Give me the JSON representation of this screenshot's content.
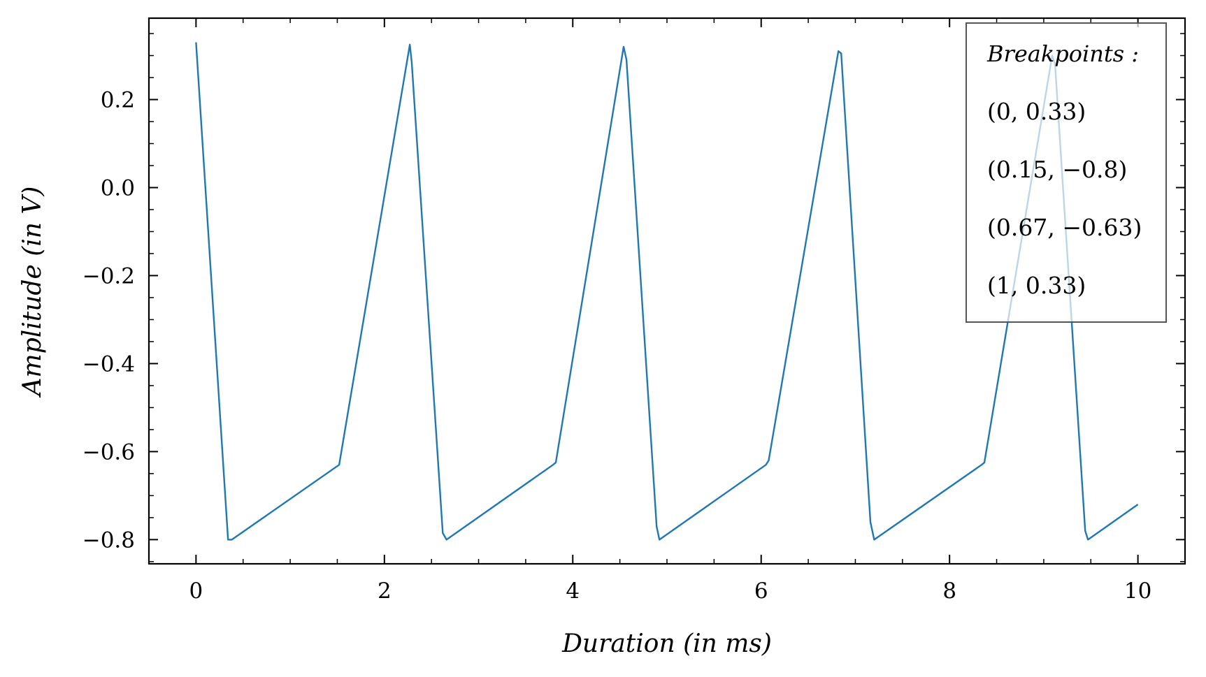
{
  "chart_data": {
    "type": "line",
    "title": "",
    "xlabel": "Duration (in ms)",
    "ylabel": "Amplitude (in V)",
    "xlim": [
      -0.5,
      10.5
    ],
    "ylim": [
      -0.855,
      0.385
    ],
    "x_ticks": [
      0,
      2,
      4,
      6,
      8,
      10
    ],
    "x_tick_labels": [
      "0",
      "2",
      "4",
      "6",
      "8",
      "10"
    ],
    "y_ticks": [
      0.2,
      0.0,
      -0.2,
      -0.4,
      -0.6,
      -0.8
    ],
    "y_tick_labels": [
      "0.2",
      "0.0",
      "−0.2",
      "−0.4",
      "−0.6",
      "−0.8"
    ],
    "grid": false,
    "legend": {
      "placement": "top-right",
      "title": "Breakpoints :",
      "entries": [
        "(0, 0.33)",
        "(0.15, −0.8)",
        "(0.67, −0.63)",
        "(1, 0.33)"
      ]
    },
    "series": [
      {
        "color": "#1f77b4",
        "x": [
          0,
          0.34,
          0.38,
          1.52,
          2.27,
          2.29,
          2.62,
          2.66,
          3.79,
          3.82,
          4.54,
          4.57,
          4.89,
          4.92,
          6.05,
          6.08,
          6.82,
          6.85,
          7.16,
          7.2,
          8.34,
          8.37,
          9.09,
          9.12,
          9.44,
          9.47,
          10.0
        ],
        "y": [
          0.33,
          -0.8,
          -0.8,
          -0.63,
          0.325,
          0.285,
          -0.785,
          -0.8,
          -0.63,
          -0.625,
          0.32,
          0.29,
          -0.77,
          -0.8,
          -0.63,
          -0.62,
          0.31,
          0.305,
          -0.76,
          -0.8,
          -0.63,
          -0.625,
          0.3,
          0.28,
          -0.78,
          -0.8,
          -0.72
        ]
      }
    ]
  }
}
